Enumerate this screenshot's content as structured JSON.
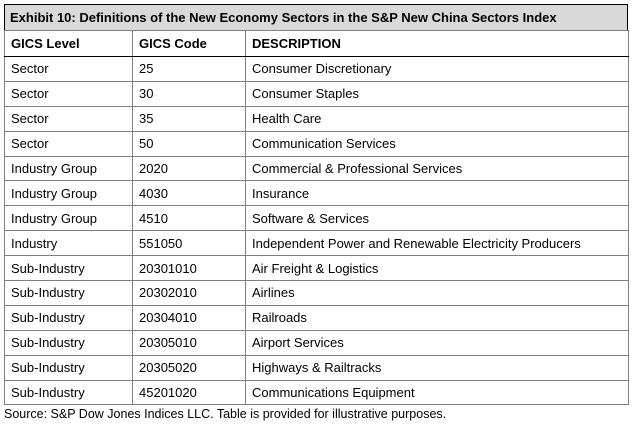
{
  "exhibit": {
    "title": "Exhibit 10: Definitions of the New Economy Sectors in the S&P New China Sectors Index",
    "columns": [
      "GICS Level",
      "GICS Code",
      "DESCRIPTION"
    ],
    "rows": [
      {
        "level": "Sector",
        "code": "25",
        "description": "Consumer Discretionary"
      },
      {
        "level": "Sector",
        "code": "30",
        "description": "Consumer Staples"
      },
      {
        "level": "Sector",
        "code": "35",
        "description": "Health Care"
      },
      {
        "level": "Sector",
        "code": "50",
        "description": "Communication Services"
      },
      {
        "level": "Industry Group",
        "code": "2020",
        "description": "Commercial & Professional Services"
      },
      {
        "level": "Industry Group",
        "code": "4030",
        "description": "Insurance"
      },
      {
        "level": "Industry Group",
        "code": "4510",
        "description": "Software & Services"
      },
      {
        "level": "Industry",
        "code": "551050",
        "description": "Independent Power and Renewable Electricity Producers"
      },
      {
        "level": "Sub-Industry",
        "code": "20301010",
        "description": "Air Freight & Logistics"
      },
      {
        "level": "Sub-Industry",
        "code": "20302010",
        "description": "Airlines"
      },
      {
        "level": "Sub-Industry",
        "code": "20304010",
        "description": "Railroads"
      },
      {
        "level": "Sub-Industry",
        "code": "20305010",
        "description": "Airport Services"
      },
      {
        "level": "Sub-Industry",
        "code": "20305020",
        "description": "Highways & Railtracks"
      },
      {
        "level": "Sub-Industry",
        "code": "45201020",
        "description": "Communications Equipment"
      }
    ],
    "source": "Source: S&P Dow Jones Indices LLC.  Table is provided for illustrative purposes."
  }
}
